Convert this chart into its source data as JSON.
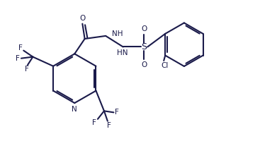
{
  "bg_color": "#ffffff",
  "line_color": "#1a1a4a",
  "line_width": 1.5,
  "font_size": 7.5,
  "figsize": [
    3.91,
    2.24
  ],
  "dpi": 100,
  "xlim": [
    0,
    9.5
  ],
  "ylim": [
    0,
    5.4
  ]
}
